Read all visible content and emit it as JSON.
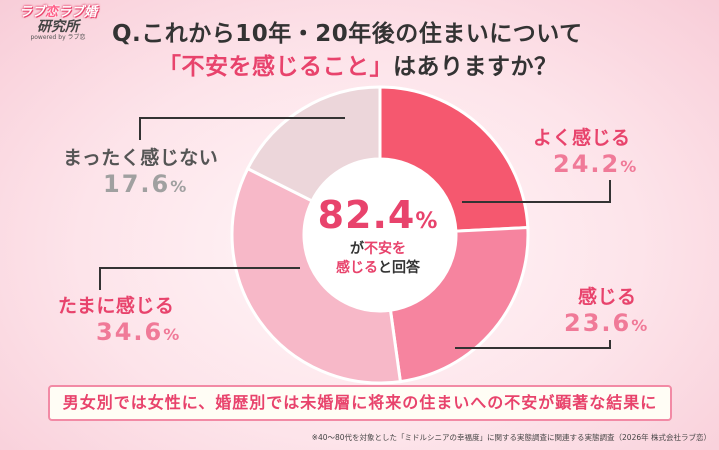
{
  "logo": {
    "line1_a": "ラブ",
    "line1_b": "恋",
    "line1_c": "ラブ婚",
    "line2": "研究所",
    "line3": "powered by ラブ恋"
  },
  "question": {
    "line1": "Q.これから10年・20年後の住まいについて",
    "line2_highlight": "「不安を感じること」",
    "line2_rest": "はありますか？"
  },
  "center": {
    "value": "82.4",
    "unit": "%",
    "line1_highlight": "不安を",
    "line1_prefix": "が",
    "line2_highlight": "感じる",
    "line2_rest": "と回答"
  },
  "labels": {
    "yoku": {
      "name": "よく感じる",
      "value": "24.2",
      "unit": "%"
    },
    "kanjiru": {
      "name": "感じる",
      "value": "23.6",
      "unit": "%"
    },
    "tamani": {
      "name": "たまに感じる",
      "value": "34.6",
      "unit": "%"
    },
    "mattaku": {
      "name": "まったく感じない",
      "value": "17.6",
      "unit": "%"
    }
  },
  "summary": "男女別では女性に、婚歴別では未婚層に将来の住まいへの不安が顕著な結果に",
  "footnote": "※40～80代を対象とした「ミドルシニアの幸福度」に関する実態調査に関連する実態調査（2026年 株式会社ラブ恋）",
  "chart_data": {
    "type": "pie",
    "donut": true,
    "categories": [
      "よく感じる",
      "感じる",
      "たまに感じる",
      "まったく感じない"
    ],
    "values": [
      24.2,
      23.6,
      34.6,
      17.6
    ],
    "unit": "%",
    "colors": [
      "#f5586f",
      "#f6849f",
      "#f7b8c8",
      "#ecd6da"
    ],
    "center_total": 82.4
  }
}
